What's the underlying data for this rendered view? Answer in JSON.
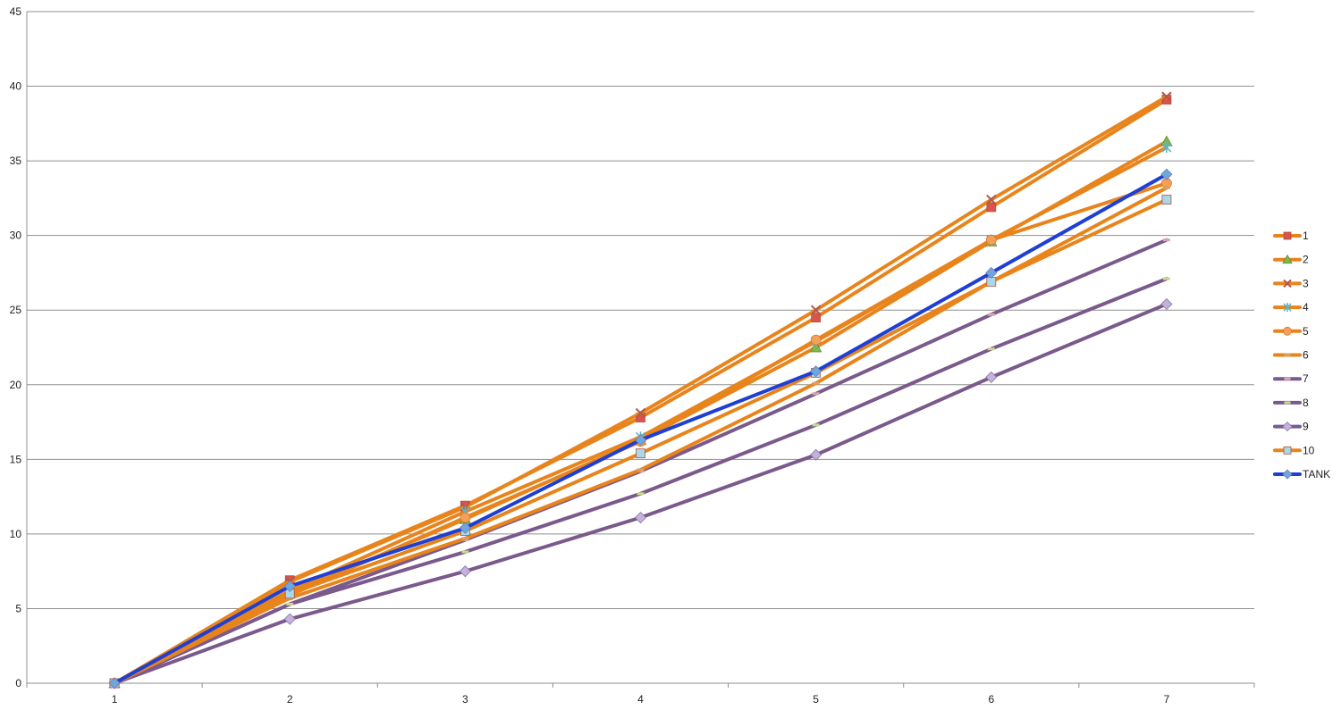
{
  "chart_data": {
    "type": "line",
    "title": "",
    "xlabel": "",
    "ylabel": "",
    "x": [
      1,
      2,
      3,
      4,
      5,
      6,
      7
    ],
    "ylim": [
      0,
      45
    ],
    "yticks": [
      0,
      5,
      10,
      15,
      20,
      25,
      30,
      35,
      40,
      45
    ],
    "grid": true,
    "legend_position": "right",
    "series": [
      {
        "name": "1",
        "color": "#e8841c",
        "marker": "square",
        "marker_color": "#d9534f",
        "values": [
          0,
          6.9,
          11.9,
          17.8,
          24.5,
          31.9,
          39.1
        ]
      },
      {
        "name": "2",
        "color": "#e8841c",
        "marker": "triangle",
        "marker_color": "#7fb94a",
        "values": [
          0,
          6.0,
          11.0,
          16.3,
          22.5,
          29.6,
          36.3
        ]
      },
      {
        "name": "3",
        "color": "#e8841c",
        "marker": "x",
        "marker_color": "#b0584a",
        "values": [
          0,
          6.8,
          11.8,
          18.1,
          25.0,
          32.4,
          39.3
        ]
      },
      {
        "name": "4",
        "color": "#e8841c",
        "marker": "star",
        "marker_color": "#5bb5c9",
        "values": [
          0,
          6.2,
          11.5,
          16.5,
          22.9,
          29.7,
          35.9
        ]
      },
      {
        "name": "5",
        "color": "#e8841c",
        "marker": "circle",
        "marker_color": "#f2a05a",
        "values": [
          0,
          5.9,
          11.1,
          16.2,
          23.0,
          29.7,
          33.5
        ]
      },
      {
        "name": "6",
        "color": "#e8841c",
        "marker": "dash",
        "marker_color": "#d9a06a",
        "values": [
          0,
          5.7,
          9.7,
          14.3,
          20.1,
          26.9,
          33.2
        ]
      },
      {
        "name": "7",
        "color": "#7a5a8c",
        "marker": "dash",
        "marker_color": "#d9a6b0",
        "values": [
          0,
          5.3,
          9.6,
          14.2,
          19.4,
          24.7,
          29.7
        ]
      },
      {
        "name": "8",
        "color": "#7a5a8c",
        "marker": "dash",
        "marker_color": "#c9d98a",
        "values": [
          0,
          5.3,
          8.8,
          12.7,
          17.3,
          22.4,
          27.1
        ]
      },
      {
        "name": "9",
        "color": "#7a5a8c",
        "marker": "diamond",
        "marker_color": "#c9b0d9",
        "values": [
          0,
          4.3,
          7.5,
          11.1,
          15.3,
          20.5,
          25.4
        ]
      },
      {
        "name": "10",
        "color": "#e8841c",
        "marker": "square",
        "marker_color": "#a8d8ea",
        "values": [
          0,
          6.0,
          10.2,
          15.4,
          20.8,
          26.9,
          32.4
        ]
      },
      {
        "name": "TANK",
        "color": "#1f3fd4",
        "marker": "diamond",
        "marker_color": "#6aa8e0",
        "values": [
          0,
          6.5,
          10.4,
          16.3,
          20.9,
          27.5,
          34.1
        ]
      }
    ]
  }
}
